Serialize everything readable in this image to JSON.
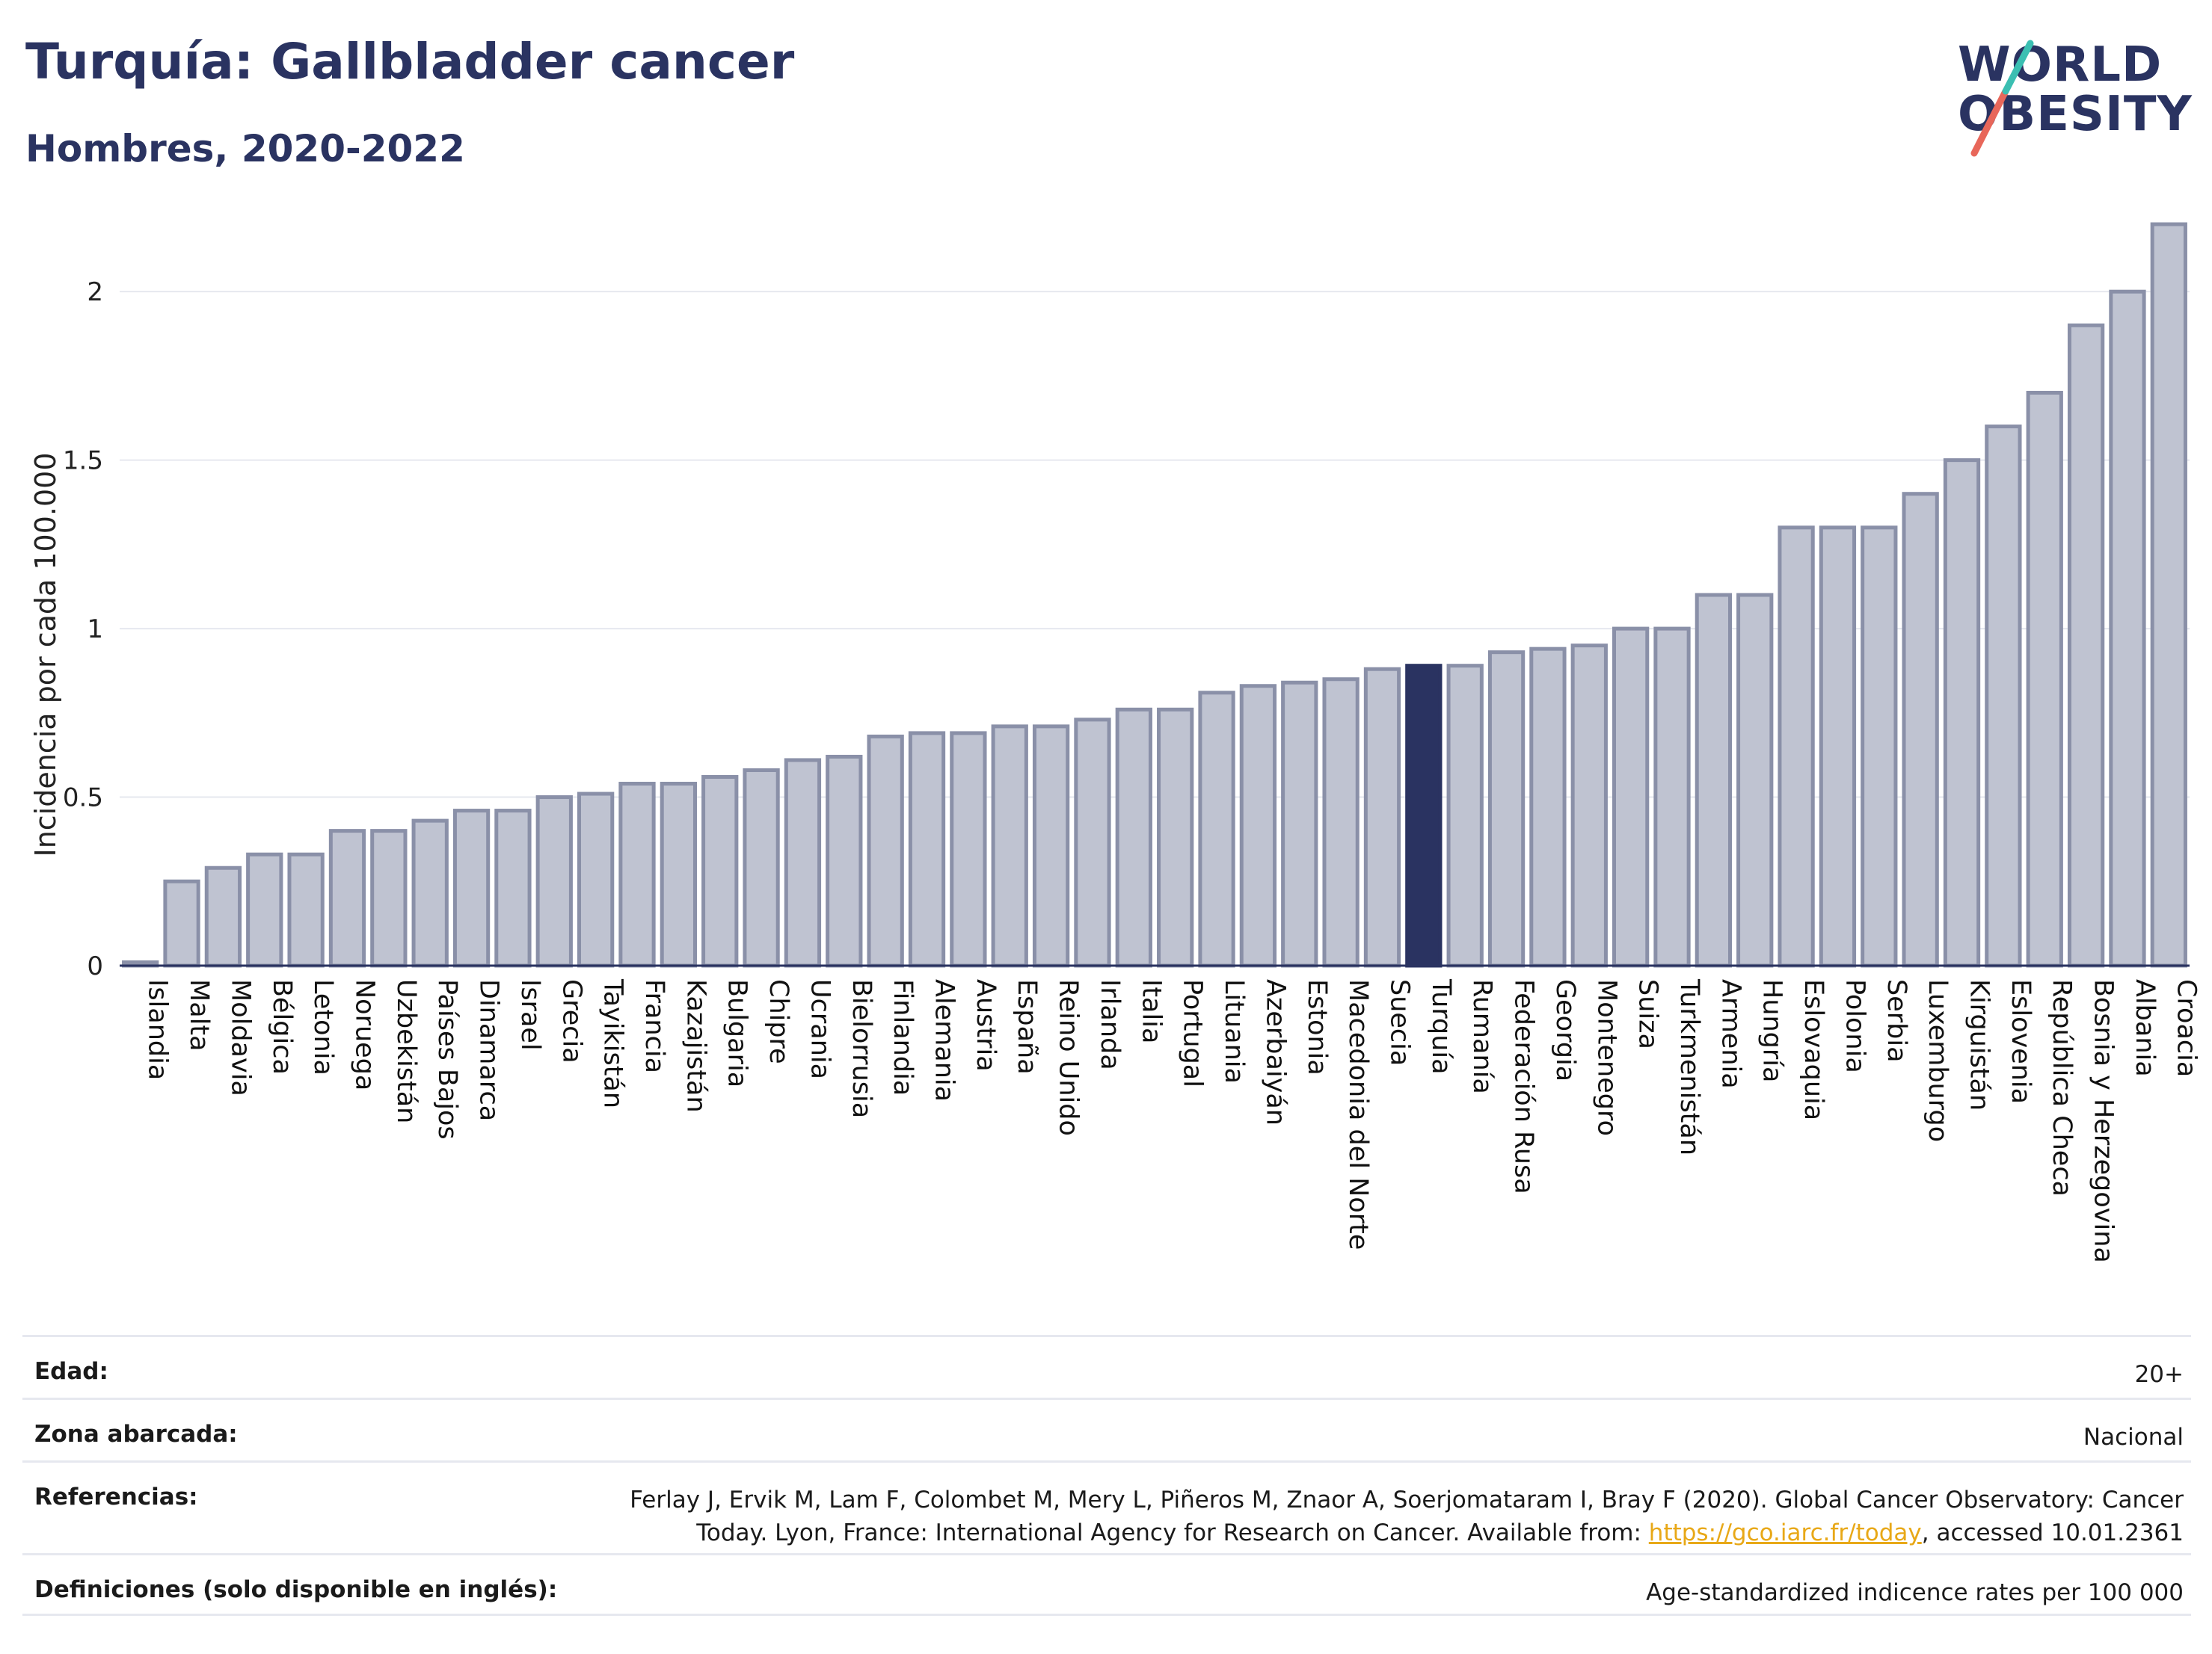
{
  "header": {
    "title": "Turquía: Gallbladder cancer",
    "subtitle": "Hombres, 2020-2022"
  },
  "logo": {
    "line1": "WORLD",
    "line2": "OBESITY",
    "slash_colors": [
      "#e8675a",
      "#3bbfb2"
    ]
  },
  "colors": {
    "bar_fill": "#bfc3d1",
    "bar_stroke": "#8a90a8",
    "highlight": "#2a3361",
    "grid": "#e6e8ef"
  },
  "chart_data": {
    "type": "bar",
    "ylabel": "Incidencia por cada 100.000",
    "ylim": [
      0,
      2.2
    ],
    "yticks": [
      0,
      0.5,
      1,
      1.5,
      2
    ],
    "ytick_labels": [
      "0",
      "0.5",
      "1",
      "1.5",
      "2"
    ],
    "highlight": "Turquía",
    "categories": [
      "Islandia",
      "Malta",
      "Moldavia",
      "Bélgica",
      "Letonia",
      "Noruega",
      "Uzbekistán",
      "Países Bajos",
      "Dinamarca",
      "Israel",
      "Grecia",
      "Tayikistán",
      "Francia",
      "Kazajistán",
      "Bulgaria",
      "Chipre",
      "Ucrania",
      "Bielorrusia",
      "Finlandia",
      "Alemania",
      "Austria",
      "España",
      "Reino Unido",
      "Irlanda",
      "Italia",
      "Portugal",
      "Lituania",
      "Azerbaiyán",
      "Estonia",
      "Macedonia del Norte",
      "Suecia",
      "Turquía",
      "Rumanía",
      "Federación Rusa",
      "Georgia",
      "Montenegro",
      "Suiza",
      "Turkmenistán",
      "Armenia",
      "Hungría",
      "Eslovaquia",
      "Polonia",
      "Serbia",
      "Luxemburgo",
      "Kirguistán",
      "Eslovenia",
      "República Checa",
      "Bosnia y Herzegovina",
      "Albania",
      "Croacia"
    ],
    "values": [
      0.01,
      0.25,
      0.29,
      0.33,
      0.33,
      0.4,
      0.4,
      0.43,
      0.46,
      0.46,
      0.5,
      0.51,
      0.54,
      0.54,
      0.56,
      0.58,
      0.61,
      0.62,
      0.68,
      0.69,
      0.69,
      0.71,
      0.71,
      0.73,
      0.76,
      0.76,
      0.81,
      0.83,
      0.84,
      0.85,
      0.88,
      0.89,
      0.89,
      0.93,
      0.94,
      0.95,
      1.0,
      1.0,
      1.1,
      1.1,
      1.3,
      1.3,
      1.3,
      1.4,
      1.5,
      1.6,
      1.7,
      1.9,
      2.0,
      2.2
    ]
  },
  "info": {
    "age_label": "Edad:",
    "age_value": "20+",
    "zone_label": "Zona abarcada:",
    "zone_value": "Nacional",
    "refs_label": "Referencias:",
    "refs_line1": "Ferlay J, Ervik M, Lam F, Colombet M, Mery L, Piñeros M, Znaor A, Soerjomataram I, Bray F (2020). Global Cancer Observatory: Cancer",
    "refs_line2_pre": "Today. Lyon, France: International Agency for Research on Cancer. Available from: ",
    "refs_link": "https://gco.iarc.fr/today",
    "refs_line2_post": ", accessed 10.01.2361",
    "defs_label": "Definiciones (solo disponible en inglés):",
    "defs_value": "Age-standardized indicence rates per 100 000"
  }
}
